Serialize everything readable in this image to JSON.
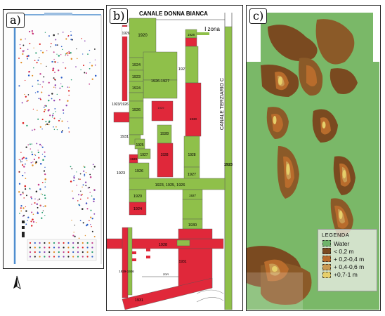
{
  "panel_a": {
    "label": "a)",
    "north_symbol": "north-arrow-icon"
  },
  "panel_b": {
    "label": "b)",
    "canal_top": "CANALE DONNA BIANCA",
    "canal_right": "CANALE TERZIARIO C",
    "zone": "I zona",
    "years": [
      "1920",
      "1926",
      "1924",
      "1923",
      "1927",
      "1926-1927",
      "1924",
      "1923/1926",
      "1926",
      "1931",
      "1925",
      "1927",
      "1929",
      "1926",
      "1928",
      "1928",
      "1927",
      "1923",
      "1923",
      "1923, 1925, 1926",
      "1920",
      "1924",
      "1930",
      "1928",
      "1931",
      "1931"
    ],
    "colors": {
      "built": "#8fc04a",
      "unbuilt": "#e0283a"
    }
  },
  "panel_c": {
    "label": "c)",
    "legend_title": "Legenda",
    "legend": [
      {
        "label": "Water",
        "color": "#6fb46a"
      },
      {
        "label": "< 0,2 m",
        "color": "#7a4a20"
      },
      {
        "label": "+ 0,2-0,4 m",
        "color": "#b86c2c"
      },
      {
        "label": "+ 0,4-0,6 m",
        "color": "#c99a52"
      },
      {
        "label": "+0,7-1 m",
        "color": "#e6cf6a"
      }
    ]
  }
}
